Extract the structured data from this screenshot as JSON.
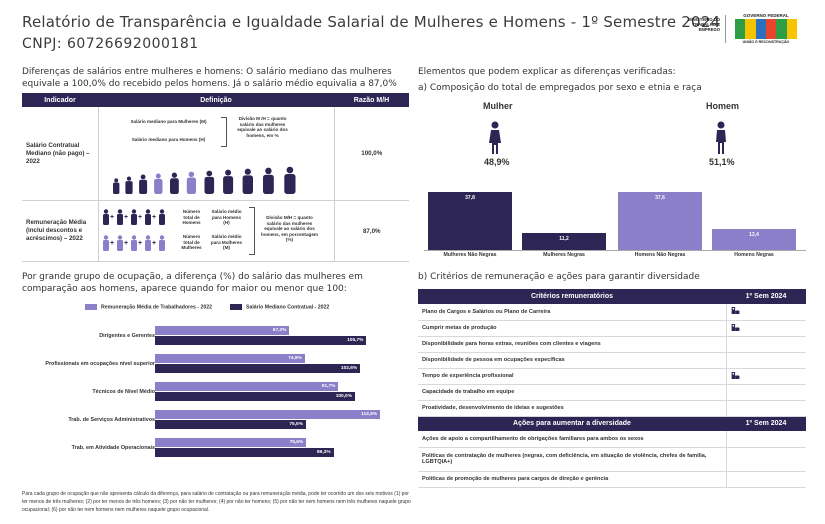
{
  "header": {
    "title": "Relatório de Transparência e Igualdade Salarial de Mulheres e Homens - 1º Semestre 2024",
    "cnpj": "CNPJ: 60726692000181",
    "ministerio": "MINISTÉRIO DO TRABALHO E EMPREGO",
    "governo": "GOVERNO FEDERAL",
    "brasil_subtitle": "UNIÃO E RECONSTRUÇÃO"
  },
  "intro": "Diferenças de salários entre mulheres e homens: O salário mediano das mulheres equivale a 100,0% do recebido pelos homens. Já o salário médio equivalia a 87,0%",
  "indicators": {
    "headers": [
      "Indicador",
      "Definição",
      "Razão M/H"
    ],
    "rows": [
      {
        "name": "Salário Contratual Mediano (não pago) – 2022",
        "ratio": "100,0%",
        "def_a": "Salário mediano para Mulheres (M)",
        "def_b": "Salário mediano para Homens (H)",
        "def_c": "Divisão M /H = quanto salário das mulheres equivale ao salário dos homens, em %"
      },
      {
        "name": "Remuneração Média (inclui descontos e acréscimos) – 2022",
        "ratio": "87,0%",
        "def_a1": "Número total de Homens",
        "def_a2": "Salário médio para Homens (H)",
        "def_b1": "Número total de Mulheres",
        "def_b2": "Salário médio para Mulheres (M)",
        "def_c": "Divisão M/H = quanto salário das mulheres equivale ao salário dos homens, em porcentagem (%)"
      }
    ]
  },
  "occupation_intro": "Por grande grupo de ocupação, a diferença (%) do salário das mulheres em comparação aos homens, aparece quando for maior ou menor que 100:",
  "occupation_chart": {
    "legend": [
      "Remuneração Média de Trabalhadores - 2022",
      "Salário Mediano Contratual - 2022"
    ],
    "colors": [
      "#8a7fc8",
      "#2d2554"
    ],
    "categories": [
      "Dirigentes e Gerentes",
      "Profissionais em ocupações nível superior",
      "Técnicos de Nível Médio",
      "Trab. de Serviços Administrativos",
      "Trab. em Atividade Operacionais"
    ],
    "media": [
      67.2,
      74.9,
      91.7,
      112.6,
      75.6
    ],
    "mediano": [
      105.7,
      102.6,
      100.0,
      75.5,
      89.3
    ],
    "media_labels": [
      "67,2%",
      "74,9%",
      "91,7%",
      "112,6%",
      "75,6%"
    ],
    "mediano_labels": [
      "105,7%",
      "102,6%",
      "100,0%",
      "75,5%",
      "89,3%"
    ]
  },
  "footnote": "Para cada grupo de ocupação que não apresenta cálculo da diferença, para salário de contratação ou para remuneração média, pode ter ocorrido um dos seis motivos (1) por ter menos de três mulheres; (2) por ter menos de três homens; (3) por não ter mulheres; (4) por não ter homens; (5) por não ter nem homens nem três mulheres naquele grupo ocupacional; (6) por não ter nem homens nem mulheres naquele grupo ocupacional.",
  "right": {
    "heading": "Elementos que podem explicar as diferenças verificadas:",
    "sub_a": "a) Composição do total de empregados por sexo e etnia e raça",
    "mulher": "Mulher",
    "homem": "Homem",
    "mulher_pct": "48,9%",
    "homem_pct": "51,1%",
    "composition_chart": {
      "type": "bar",
      "categories": [
        "Mulheres Não Negras",
        "Mulheres Negras",
        "Homens Não Negras",
        "Homens Negras"
      ],
      "values": [
        37.8,
        11.2,
        37.6,
        13.4
      ],
      "labels": [
        "37,8",
        "11,2",
        "37,6",
        "13,4"
      ],
      "colors": [
        "#2d2554",
        "#2d2554",
        "#8a7fc8",
        "#8a7fc8"
      ]
    },
    "sub_b": "b) Critérios de remuneração e ações para garantir diversidade",
    "criteria_header": [
      "Critérios remuneratórios",
      "1º Sem 2024"
    ],
    "criteria": [
      {
        "label": "Plano de Cargos e Salários ou Plano de Carreira",
        "checked": true
      },
      {
        "label": "Cumprir metas de produção",
        "checked": true
      },
      {
        "label": "Disponibilidade para horas extras, reuniões com clientes e viagens",
        "checked": false
      },
      {
        "label": "Disponibilidade de pessoa em ocupações específicas",
        "checked": false
      },
      {
        "label": "Tempo de experiência profissional",
        "checked": true
      },
      {
        "label": "Capacidade de trabalho em equipe",
        "checked": false
      },
      {
        "label": "Proatividade, desenvolvimento de ideias e sugestões",
        "checked": false
      }
    ],
    "actions_header": [
      "Ações para aumentar a diversidade",
      "1º Sem 2024"
    ],
    "actions": [
      {
        "label": "Ações de apoio a compartilhamento de obrigações familiares para ambos os sexos",
        "checked": false
      },
      {
        "label": "Políticas de contratação de mulheres (negras, com deficiência, em situação de violência, chefes de família, LGBTQIA+)",
        "checked": false
      },
      {
        "label": "Políticas de promoção de mulheres para cargos de direção e gerência",
        "checked": false
      }
    ]
  }
}
